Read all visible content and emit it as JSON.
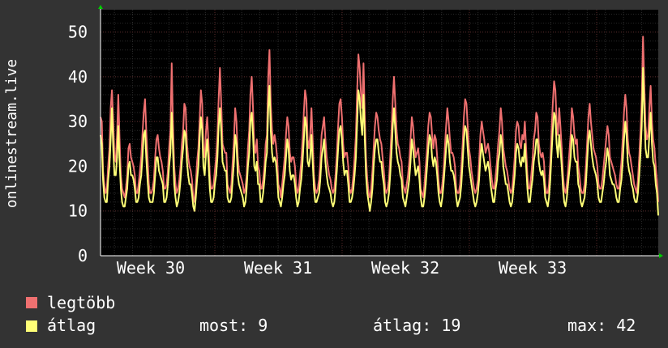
{
  "chart_data": {
    "type": "line",
    "title": "",
    "ylabel": "onlinestream.live",
    "xlabel": "",
    "ylim": [
      0,
      55
    ],
    "yticks": [
      0,
      10,
      20,
      30,
      40,
      50
    ],
    "x_tick_labels": [
      "Week 30",
      "Week 31",
      "Week 32",
      "Week 33"
    ],
    "grid": true,
    "background": "#000000",
    "series": [
      {
        "name": "legtöbb",
        "color": "#ef7070",
        "values": [
          31,
          30,
          19,
          16,
          14,
          15,
          20,
          24,
          33,
          37,
          30,
          22,
          21,
          27,
          36,
          26,
          18,
          15,
          14,
          13,
          15,
          18,
          24,
          25,
          22,
          21,
          20,
          18,
          14,
          14,
          16,
          19,
          22,
          27,
          32,
          35,
          28,
          22,
          16,
          14,
          14,
          15,
          17,
          22,
          26,
          27,
          24,
          22,
          21,
          19,
          15,
          15,
          16,
          19,
          24,
          28,
          43,
          30,
          20,
          16,
          14,
          15,
          17,
          20,
          25,
          28,
          34,
          33,
          25,
          22,
          20,
          19,
          17,
          13,
          12,
          16,
          21,
          24,
          30,
          37,
          34,
          24,
          22,
          28,
          31,
          25,
          18,
          15,
          15,
          16,
          19,
          22,
          27,
          35,
          42,
          34,
          25,
          24,
          23,
          23,
          16,
          15,
          14,
          16,
          21,
          26,
          33,
          30,
          22,
          19,
          18,
          17,
          16,
          14,
          15,
          18,
          24,
          28,
          36,
          40,
          33,
          25,
          23,
          26,
          20,
          19,
          15,
          15,
          17,
          20,
          25,
          27,
          40,
          46,
          34,
          28,
          25,
          27,
          25,
          22,
          16,
          15,
          13,
          16,
          19,
          22,
          27,
          31,
          29,
          23,
          21,
          22,
          22,
          20,
          16,
          14,
          15,
          18,
          21,
          26,
          32,
          37,
          35,
          26,
          24,
          27,
          33,
          26,
          18,
          15,
          14,
          15,
          17,
          21,
          27,
          29,
          31,
          26,
          22,
          20,
          18,
          17,
          15,
          14,
          15,
          18,
          23,
          29,
          34,
          35,
          31,
          25,
          22,
          23,
          23,
          20,
          15,
          14,
          15,
          18,
          22,
          27,
          37,
          45,
          42,
          36,
          33,
          43,
          31,
          22,
          17,
          14,
          13,
          15,
          19,
          24,
          29,
          32,
          31,
          28,
          26,
          25,
          22,
          19,
          15,
          14,
          15,
          17,
          22,
          28,
          35,
          40,
          34,
          28,
          25,
          24,
          22,
          21,
          16,
          15,
          14,
          16,
          18,
          21,
          26,
          31,
          29,
          25,
          22,
          23,
          24,
          21,
          15,
          14,
          13,
          16,
          20,
          24,
          29,
          32,
          31,
          27,
          24,
          27,
          26,
          22,
          17,
          14,
          14,
          16,
          19,
          24,
          29,
          33,
          30,
          26,
          23,
          23,
          22,
          20,
          15,
          14,
          14,
          16,
          20,
          25,
          31,
          35,
          34,
          29,
          24,
          22,
          19,
          17,
          15,
          14,
          15,
          17,
          21,
          27,
          30,
          28,
          26,
          23,
          24,
          25,
          23,
          20,
          17,
          15,
          15,
          18,
          21,
          25,
          28,
          33,
          30,
          24,
          22,
          20,
          19,
          17,
          15,
          14,
          15,
          18,
          22,
          28,
          30,
          29,
          25,
          24,
          27,
          26,
          30,
          24,
          18,
          15,
          15,
          18,
          21,
          26,
          28,
          32,
          31,
          25,
          23,
          22,
          23,
          21,
          16,
          14,
          14,
          16,
          21,
          28,
          34,
          39,
          37,
          30,
          27,
          33,
          29,
          24,
          18,
          15,
          14,
          16,
          19,
          23,
          27,
          33,
          31,
          27,
          25,
          26,
          20,
          18,
          15,
          14,
          14,
          16,
          20,
          25,
          31,
          34,
          30,
          27,
          24,
          23,
          22,
          20,
          16,
          15,
          15,
          17,
          20,
          23,
          26,
          29,
          27,
          22,
          21,
          20,
          19,
          18,
          16,
          15,
          15,
          18,
          21,
          26,
          32,
          36,
          33,
          26,
          23,
          22,
          20,
          18,
          16,
          15,
          14,
          17,
          22,
          28,
          35,
          49,
          38,
          29,
          26,
          27,
          33,
          38,
          30,
          26,
          24,
          20,
          17,
          12
        ]
      },
      {
        "name": "átlag",
        "color": "#ffff77",
        "values": [
          27,
          25,
          17,
          13,
          12,
          12,
          17,
          20,
          26,
          33,
          24,
          18,
          18,
          22,
          29,
          21,
          15,
          12,
          11,
          11,
          13,
          15,
          20,
          21,
          18,
          18,
          17,
          15,
          12,
          12,
          13,
          16,
          18,
          22,
          27,
          28,
          22,
          17,
          13,
          12,
          12,
          12,
          14,
          18,
          22,
          22,
          19,
          18,
          17,
          16,
          12,
          12,
          13,
          16,
          20,
          23,
          32,
          24,
          16,
          13,
          11,
          12,
          14,
          17,
          21,
          24,
          28,
          27,
          21,
          18,
          16,
          16,
          14,
          11,
          10,
          13,
          17,
          20,
          26,
          31,
          28,
          20,
          18,
          23,
          26,
          21,
          15,
          12,
          12,
          13,
          16,
          18,
          22,
          29,
          33,
          28,
          21,
          20,
          19,
          19,
          13,
          12,
          12,
          13,
          17,
          21,
          27,
          25,
          18,
          16,
          15,
          14,
          13,
          11,
          12,
          15,
          20,
          23,
          30,
          32,
          27,
          20,
          19,
          21,
          16,
          16,
          12,
          12,
          14,
          17,
          21,
          23,
          33,
          38,
          28,
          23,
          21,
          22,
          21,
          18,
          13,
          12,
          11,
          13,
          16,
          18,
          22,
          26,
          24,
          19,
          17,
          18,
          18,
          16,
          13,
          11,
          12,
          15,
          17,
          21,
          26,
          31,
          29,
          21,
          20,
          22,
          27,
          21,
          15,
          12,
          12,
          13,
          14,
          17,
          22,
          24,
          26,
          21,
          18,
          16,
          15,
          14,
          12,
          11,
          12,
          15,
          19,
          24,
          28,
          29,
          26,
          21,
          18,
          19,
          19,
          16,
          12,
          12,
          13,
          15,
          18,
          22,
          30,
          37,
          35,
          30,
          27,
          36,
          26,
          18,
          14,
          12,
          10,
          12,
          15,
          20,
          24,
          26,
          26,
          23,
          21,
          21,
          18,
          16,
          12,
          11,
          12,
          14,
          18,
          23,
          29,
          33,
          28,
          23,
          21,
          20,
          18,
          17,
          13,
          12,
          11,
          13,
          15,
          17,
          21,
          26,
          24,
          21,
          18,
          19,
          20,
          17,
          13,
          11,
          11,
          13,
          16,
          20,
          24,
          27,
          26,
          22,
          20,
          22,
          21,
          18,
          14,
          12,
          11,
          13,
          16,
          20,
          24,
          27,
          25,
          21,
          19,
          19,
          18,
          16,
          13,
          11,
          12,
          13,
          16,
          21,
          26,
          29,
          28,
          24,
          20,
          18,
          16,
          14,
          12,
          11,
          12,
          14,
          17,
          22,
          25,
          23,
          21,
          19,
          20,
          21,
          19,
          16,
          14,
          12,
          12,
          15,
          17,
          21,
          23,
          27,
          25,
          20,
          18,
          16,
          16,
          14,
          12,
          11,
          12,
          15,
          18,
          23,
          25,
          24,
          21,
          20,
          22,
          21,
          25,
          20,
          15,
          12,
          12,
          15,
          17,
          21,
          23,
          26,
          26,
          21,
          19,
          18,
          19,
          17,
          13,
          12,
          11,
          13,
          17,
          23,
          28,
          32,
          31,
          25,
          22,
          27,
          24,
          20,
          15,
          12,
          11,
          13,
          16,
          19,
          22,
          27,
          26,
          22,
          21,
          21,
          16,
          15,
          12,
          11,
          12,
          13,
          16,
          21,
          26,
          28,
          25,
          22,
          20,
          19,
          18,
          16,
          13,
          12,
          12,
          14,
          16,
          19,
          21,
          24,
          22,
          18,
          17,
          16,
          16,
          15,
          13,
          12,
          12,
          15,
          17,
          21,
          26,
          30,
          27,
          21,
          19,
          18,
          16,
          15,
          13,
          12,
          12,
          14,
          18,
          23,
          29,
          42,
          32,
          24,
          22,
          22,
          27,
          32,
          25,
          21,
          20,
          16,
          14,
          9
        ]
      }
    ]
  },
  "legend": [
    {
      "label": "legtöbb",
      "color": "#ef7070"
    },
    {
      "label": "átlag",
      "color": "#ffff77"
    }
  ],
  "stats": {
    "now_label": "most: 9",
    "avg_label": "átlag: 19",
    "max_label": "max: 42"
  }
}
